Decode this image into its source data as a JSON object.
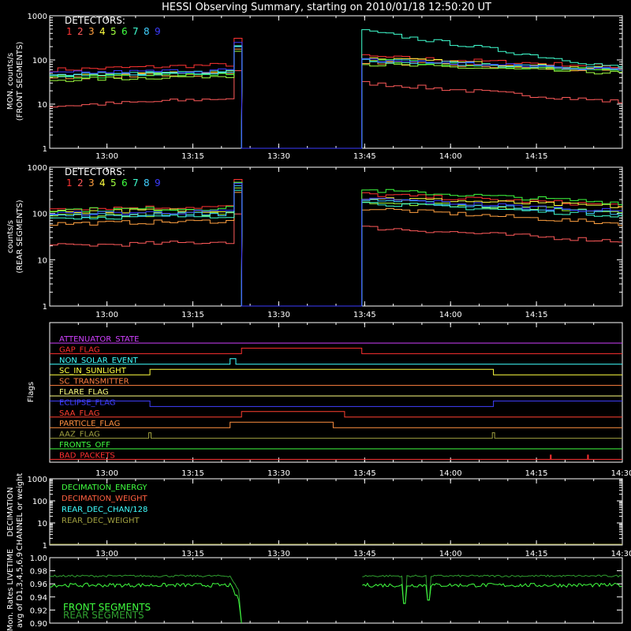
{
  "title": "HESSI Observing Summary, starting on 2010/01/18 12:50:20 UT",
  "time_ticks": [
    "13:00",
    "13:15",
    "13:30",
    "13:45",
    "14:00",
    "14:15"
  ],
  "flags_time_ticks": [
    "13:00",
    "13:15",
    "13:30",
    "13:45",
    "14:00",
    "14:15",
    "14:30"
  ],
  "dec_time_ticks": [
    "13:00",
    "13:15",
    "13:30",
    "13:45",
    "14:00",
    "14:15",
    "14:30"
  ],
  "detector_colors": [
    "#ff3333",
    "#ff5a5a",
    "#ffa040",
    "#ffff40",
    "#a0ff40",
    "#40ff40",
    "#40ffd0",
    "#40d0ff",
    "#3c3cff"
  ],
  "panels": {
    "front": {
      "ylabel1": "MON. counts/s",
      "ylabel2": "(FRONT SEGMENTS)",
      "yticks": [
        "1000",
        "100",
        "10",
        "1"
      ],
      "legend_title": "DETECTORS:",
      "legend_numbers": [
        "1",
        "2",
        "3",
        "4",
        "5",
        "6",
        "7",
        "8",
        "9"
      ]
    },
    "rear": {
      "ylabel1": "counts/s",
      "ylabel2": "(REAR SEGMENTS)",
      "yticks": [
        "1000",
        "100",
        "10",
        "1"
      ],
      "legend_title": "DETECTORS:",
      "legend_numbers": [
        "1",
        "2",
        "3",
        "4",
        "5",
        "6",
        "7",
        "8",
        "9"
      ]
    },
    "flags": {
      "ylabel": "Flags",
      "items": [
        {
          "label": "ATTENUATOR_STATE",
          "color": "#d040ff"
        },
        {
          "label": "GAP_FLAG",
          "color": "#ff3030"
        },
        {
          "label": "NON_SOLAR_EVENT",
          "color": "#40ffff"
        },
        {
          "label": "SC_IN_SUNLIGHT",
          "color": "#ffff40"
        },
        {
          "label": "SC_TRANSMITTER",
          "color": "#ff8040"
        },
        {
          "label": "FLARE_FLAG",
          "color": "#ffff80"
        },
        {
          "label": "ECLIPSE_FLAG",
          "color": "#4040ff"
        },
        {
          "label": "SAA_FLAG",
          "color": "#ff4030"
        },
        {
          "label": "PARTICLE_FLAG",
          "color": "#ff9040"
        },
        {
          "label": "AAZ_FLAG",
          "color": "#a0a040"
        },
        {
          "label": "FRONTS_OFF",
          "color": "#40ff40"
        },
        {
          "label": "BAD_PACKETS",
          "color": "#ff3030"
        }
      ]
    },
    "decimation": {
      "ylabel1": "DECIMATION",
      "ylabel2": "CHANNEL or weight",
      "yticks": [
        "1000",
        "100",
        "10",
        "1"
      ],
      "legend": [
        {
          "label": "DECIMATION_ENERGY",
          "color": "#40ff40"
        },
        {
          "label": "DECIMATION_WEIGHT",
          "color": "#ff6040"
        },
        {
          "label": "REAR_DEC_CHAN/128",
          "color": "#40ffff"
        },
        {
          "label": "REAR_DEC_WEIGHT",
          "color": "#a0a040"
        }
      ]
    },
    "livetime": {
      "ylabel1": "Mon. Rates LIVETIME",
      "ylabel2": "avg of D1,3,4,5,6,9",
      "yticks": [
        "1.00",
        "0.98",
        "0.96",
        "0.94",
        "0.92",
        "0.90"
      ],
      "legend": [
        {
          "label": "FRONT SEGMENTS",
          "color": "#40ff40"
        },
        {
          "label": "REAR SEGMENTS",
          "color": "#30a030"
        }
      ]
    }
  },
  "chart_data": [
    {
      "type": "line",
      "title": "HESSI Observing Summary, starting on 2010/01/18 12:50:20 UT",
      "ylabel": "MON. counts/s (FRONT SEGMENTS)",
      "yscale": "log",
      "ylim": [
        1,
        1000
      ],
      "x": [
        "12:50",
        "13:23",
        "13:23",
        "13:44",
        "13:44",
        "14:30"
      ],
      "series": [
        {
          "name": "1",
          "values": [
            60,
            80,
            1,
            1,
            120,
            70
          ]
        },
        {
          "name": "2",
          "values": [
            9,
            14,
            1,
            1,
            30,
            11
          ]
        },
        {
          "name": "3",
          "values": [
            40,
            50,
            1,
            1,
            90,
            55
          ]
        },
        {
          "name": "4",
          "values": [
            45,
            55,
            1,
            1,
            110,
            60
          ]
        },
        {
          "name": "5",
          "values": [
            35,
            45,
            1,
            1,
            80,
            50
          ]
        },
        {
          "name": "6",
          "values": [
            40,
            50,
            1,
            1,
            100,
            55
          ]
        },
        {
          "name": "7",
          "values": [
            45,
            55,
            1,
            1,
            450,
            65
          ]
        },
        {
          "name": "8",
          "values": [
            45,
            55,
            1,
            1,
            100,
            60
          ]
        },
        {
          "name": "9",
          "values": [
            50,
            60,
            1,
            1,
            100,
            60
          ]
        }
      ]
    },
    {
      "type": "line",
      "ylabel": "counts/s (REAR SEGMENTS)",
      "yscale": "log",
      "ylim": [
        1,
        1000
      ],
      "x": [
        "12:50",
        "13:23",
        "13:23",
        "13:44",
        "13:44",
        "14:30"
      ],
      "series": [
        {
          "name": "1",
          "values": [
            130,
            140,
            1,
            1,
            260,
            150
          ]
        },
        {
          "name": "2",
          "values": [
            20,
            25,
            1,
            1,
            50,
            25
          ]
        },
        {
          "name": "3",
          "values": [
            60,
            70,
            1,
            1,
            130,
            60
          ]
        },
        {
          "name": "4",
          "values": [
            110,
            120,
            1,
            1,
            220,
            140
          ]
        },
        {
          "name": "5",
          "values": [
            90,
            100,
            1,
            1,
            180,
            110
          ]
        },
        {
          "name": "6",
          "values": [
            120,
            130,
            1,
            1,
            320,
            170
          ]
        },
        {
          "name": "7",
          "values": [
            80,
            90,
            1,
            1,
            170,
            90
          ]
        },
        {
          "name": "8",
          "values": [
            90,
            100,
            1,
            1,
            200,
            100
          ]
        },
        {
          "name": "9",
          "values": [
            100,
            110,
            1,
            1,
            210,
            110
          ]
        }
      ]
    },
    {
      "type": "line",
      "ylabel": "Mon. Rates LIVETIME avg of D1,3,4,5,6,9",
      "ylim": [
        0.9,
        1.0
      ],
      "series": [
        {
          "name": "FRONT SEGMENTS",
          "values": [
            0.957,
            0.96,
            0.956,
            0.96,
            0.962
          ]
        },
        {
          "name": "REAR SEGMENTS",
          "values": [
            0.972,
            0.972,
            0.97,
            0.972,
            0.972
          ]
        }
      ]
    }
  ]
}
